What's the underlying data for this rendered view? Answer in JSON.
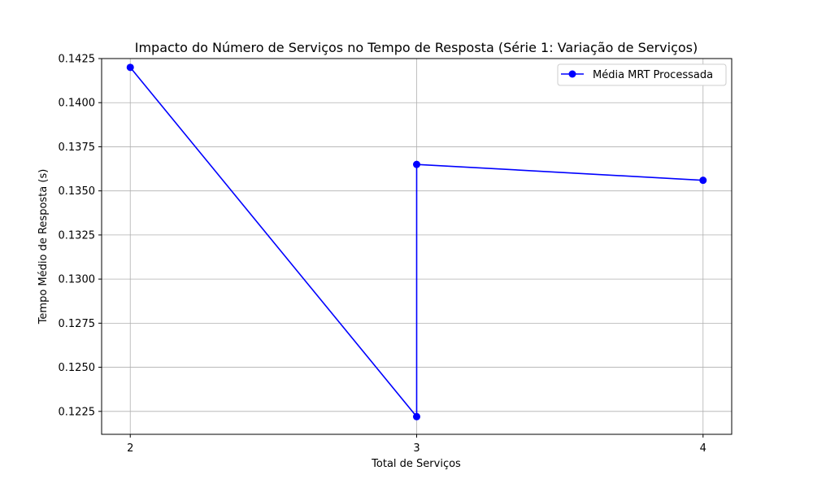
{
  "chart_data": {
    "type": "line",
    "title": "Impacto do Número de Serviços no Tempo de Resposta (Série 1: Variação de Serviços)",
    "xlabel": "Total de Serviços",
    "ylabel": "Tempo Médio de Resposta (s)",
    "xlim": [
      1.9,
      4.1
    ],
    "ylim": [
      0.1212,
      0.1425
    ],
    "x_ticks": [
      2,
      3,
      4
    ],
    "x_tick_labels": [
      "2",
      "3",
      "4"
    ],
    "y_ticks": [
      0.1225,
      0.125,
      0.1275,
      0.13,
      0.1325,
      0.135,
      0.1375,
      0.14,
      0.1425
    ],
    "y_tick_labels": [
      "0.1225",
      "0.1250",
      "0.1275",
      "0.1300",
      "0.1325",
      "0.1350",
      "0.1375",
      "0.1400",
      "0.1425"
    ],
    "grid": true,
    "legend_position": "top-right",
    "series": [
      {
        "name": "Média MRT Processada",
        "color": "#0000ff",
        "marker": "circle",
        "x": [
          2,
          3,
          3,
          4
        ],
        "y": [
          0.142,
          0.1222,
          0.1365,
          0.1356
        ]
      }
    ]
  }
}
